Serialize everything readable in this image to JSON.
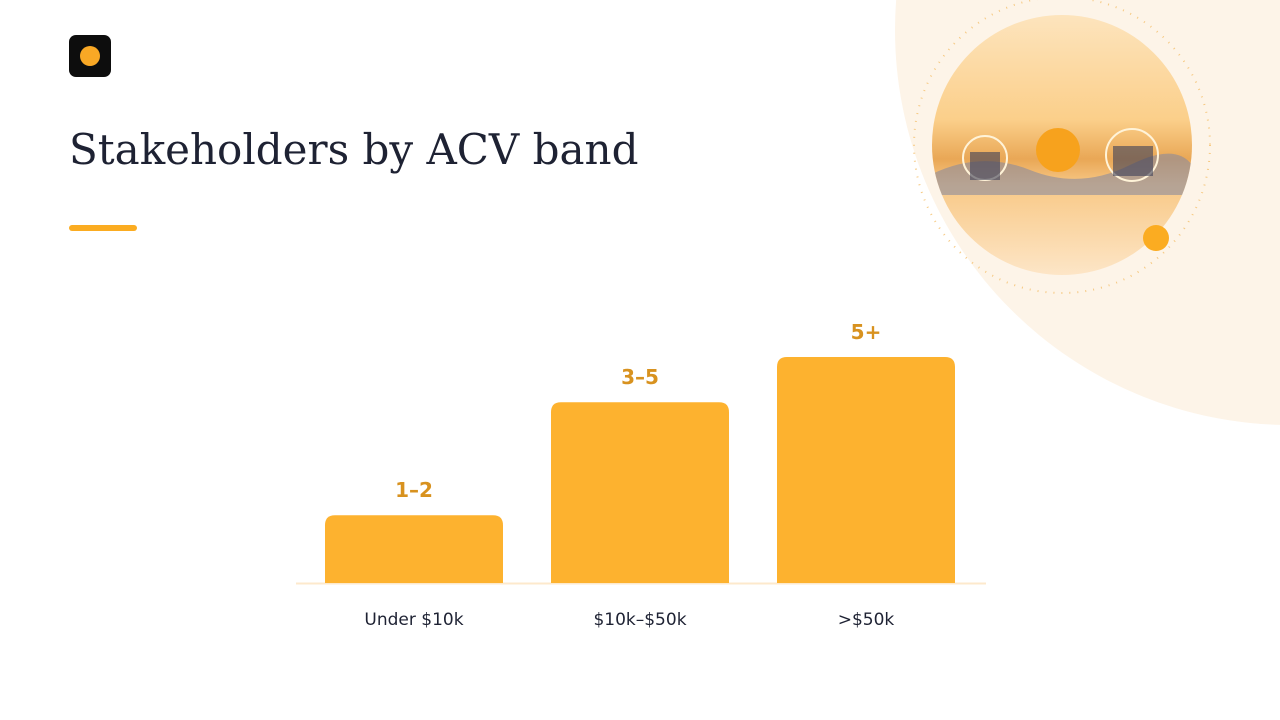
{
  "chart_data": {
    "type": "bar",
    "title": "Stakeholders by ACV band",
    "categories": [
      "Under $10k",
      "$10k–$50k",
      ">$50k"
    ],
    "values": [
      1.5,
      4,
      5
    ],
    "value_labels": [
      "1–2",
      "3–5",
      "5+"
    ],
    "color": "#fdb22f"
  }
}
